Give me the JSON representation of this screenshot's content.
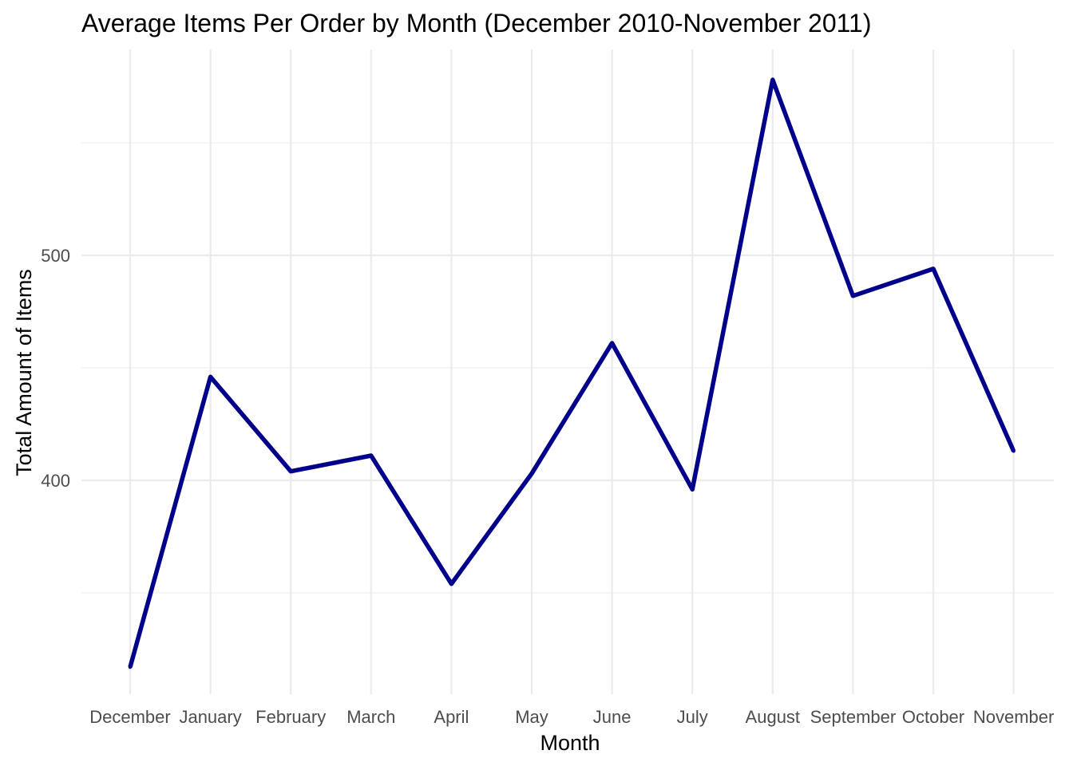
{
  "chart_data": {
    "type": "line",
    "title": "Average Items Per Order by Month (December 2010-November 2011)",
    "xlabel": "Month",
    "ylabel": "Total Amount of Items",
    "categories": [
      "December",
      "January",
      "February",
      "March",
      "April",
      "May",
      "June",
      "July",
      "August",
      "September",
      "October",
      "November"
    ],
    "values": [
      317,
      446,
      404,
      411,
      354,
      403,
      461,
      396,
      578,
      482,
      494,
      413
    ],
    "y_ticks": [
      400,
      500
    ],
    "y_tick_labels": [
      "400",
      "500"
    ],
    "ylim": [
      305,
      600
    ],
    "grid": true,
    "legend": "none",
    "line_color": "#00008B",
    "grid_color": "#EBEBEB"
  }
}
